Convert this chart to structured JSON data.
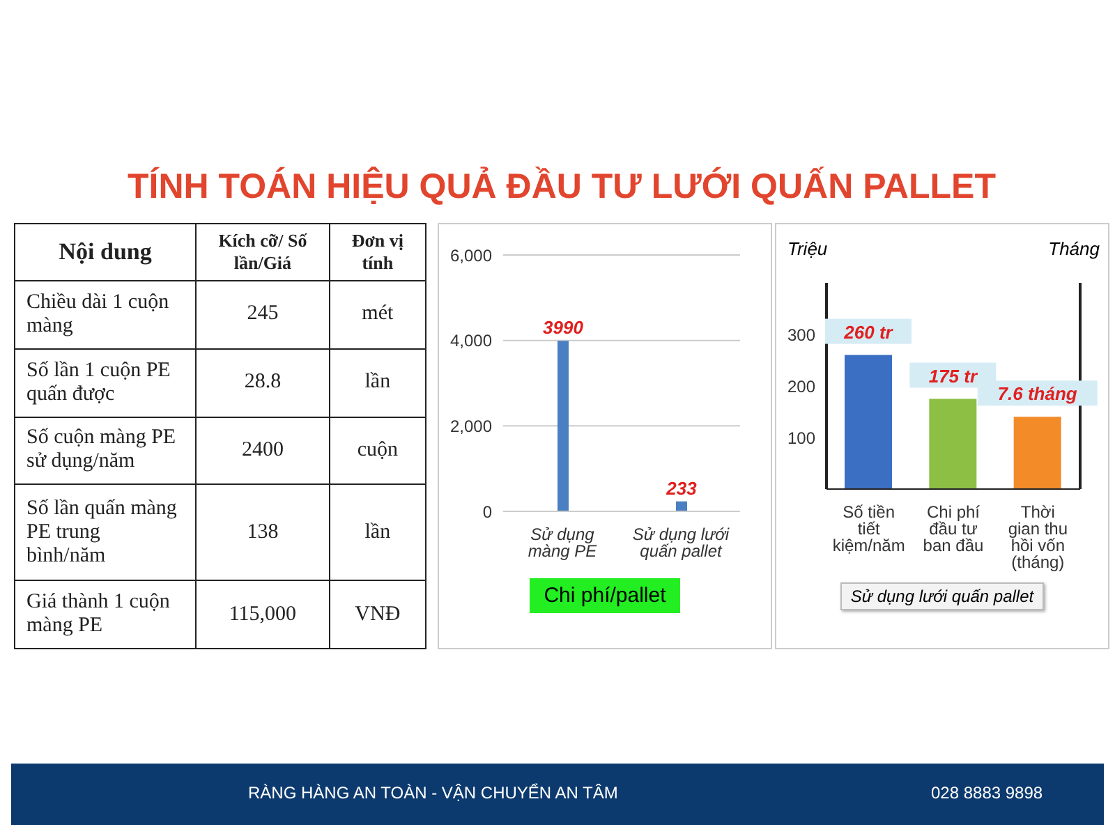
{
  "chart_data": [
    {
      "type": "other",
      "title": "TÍNH TOÁN HIỆU QUẢ ĐẦU TƯ LƯỚI QUẤN PALLET",
      "categories": [
        "Nội dung",
        "Kích cỡ/ Số lần/Giá",
        "Đơn vị tính"
      ],
      "y_categories": [
        "Chiều dài 1 cuộn màng",
        "Số lần 1 cuộn PE quấn được",
        "Số cuộn màng PE sử dụng/năm",
        "Số lần quấn màng PE trung bình/năm",
        "Giá thành 1 cuộn màng PE"
      ],
      "cell_labels": [
        [
          "245",
          "mét"
        ],
        [
          "28.8",
          "lần"
        ],
        [
          "2400",
          "cuộn"
        ],
        [
          "138",
          "lần"
        ],
        [
          "115,000",
          "VNĐ"
        ]
      ],
      "annotations": [
        "RÀNG HÀNG AN TOÀN - VẬN CHUYỂN AN TÂM",
        "028 8883 9898"
      ]
    },
    {
      "type": "bar",
      "categories": [
        "Sử dụng màng PE",
        "Sử dụng lưới quấn pallet"
      ],
      "values": [
        3990,
        233
      ],
      "color": "#4a7fc1",
      "data_labels": true,
      "xlabel": "Chi phí/pallet",
      "ylim": [
        0,
        6000
      ],
      "yticks": [
        {
          "value": 0,
          "label": "0"
        },
        {
          "value": 2000,
          "label": "2,000"
        },
        {
          "value": 4000,
          "label": "4,000"
        },
        {
          "value": 6000,
          "label": "6,000"
        }
      ],
      "grid": "y"
    },
    {
      "type": "bar",
      "categories": [
        "Số tiền tiết kiệm/năm",
        "Chi phí đầu tư ban đầu",
        "Thời gian thu hồi vốn (tháng)"
      ],
      "ylabel": "Triệu",
      "y2label": "Tháng",
      "xlabel": "Sử dụng lưới quấn pallet",
      "ylim": [
        0,
        400
      ],
      "yticks": [
        100,
        200,
        300
      ],
      "y2lim": [
        0,
        21.7
      ],
      "series": [
        {
          "colors": [
            "#3b6fc3",
            "#8dbf45",
            "#f28b28"
          ],
          "values": [
            260,
            175,
            null
          ],
          "value_labels": [
            "260 tr",
            "175 tr",
            null
          ]
        },
        {
          "axis": "y2",
          "color": "#f28b28",
          "values": [
            null,
            null,
            7.6
          ],
          "value_labels": [
            null,
            null,
            "7.6 tháng"
          ]
        }
      ]
    }
  ]
}
